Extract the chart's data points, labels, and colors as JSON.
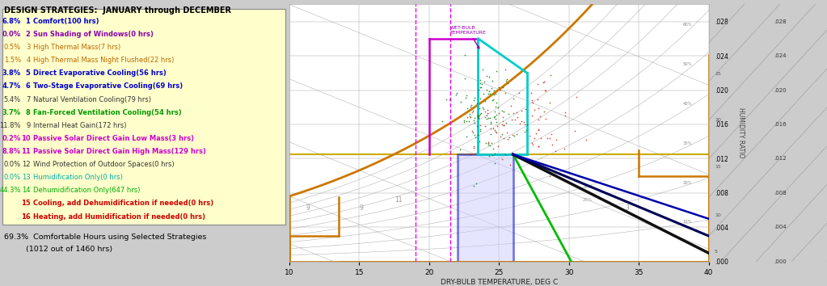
{
  "title": "DESIGN STRATEGIES:  JANUARY through DECEMBER",
  "strategies": [
    {
      "pct": "6.8%",
      "num": "1",
      "text": "Comfort(100 hrs)",
      "color": "#0000cc",
      "bold": true
    },
    {
      "pct": "0.0%",
      "num": "2",
      "text": "Sun Shading of Windows(0 hrs)",
      "color": "#8800aa",
      "bold": true
    },
    {
      "pct": "0.5%",
      "num": "3",
      "text": "High Thermal Mass(7 hrs)",
      "color": "#bb6600",
      "bold": false
    },
    {
      "pct": "1.5%",
      "num": "4",
      "text": "High Thermal Mass Night Flushed(22 hrs)",
      "color": "#bb6600",
      "bold": false
    },
    {
      "pct": "3.8%",
      "num": "5",
      "text": "Direct Evaporative Cooling(56 hrs)",
      "color": "#0000cc",
      "bold": true
    },
    {
      "pct": "4.7%",
      "num": "6",
      "text": "Two-Stage Evaporative Cooling(69 hrs)",
      "color": "#0000cc",
      "bold": true
    },
    {
      "pct": "5.4%",
      "num": "7",
      "text": "Natural Ventilation Cooling(79 hrs)",
      "color": "#333333",
      "bold": false
    },
    {
      "pct": "3.7%",
      "num": "8",
      "text": "Fan-Forced Ventilation Cooling(54 hrs)",
      "color": "#009900",
      "bold": true
    },
    {
      "pct": "11.8%",
      "num": "9",
      "text": "Internal Heat Gain(172 hrs)",
      "color": "#333333",
      "bold": false
    },
    {
      "pct": "0.2%",
      "num": "10",
      "text": "Passive Solar Direct Gain Low Mass(3 hrs)",
      "color": "#cc00cc",
      "bold": true
    },
    {
      "pct": "8.8%",
      "num": "11",
      "text": "Passive Solar Direct Gain High Mass(129 hrs)",
      "color": "#cc00cc",
      "bold": true
    },
    {
      "pct": "0.0%",
      "num": "12",
      "text": "Wind Protection of Outdoor Spaces(0 hrs)",
      "color": "#333333",
      "bold": false
    },
    {
      "pct": "0.0%",
      "num": "13",
      "text": "Humidification Only(0 hrs)",
      "color": "#00aaaa",
      "bold": false
    },
    {
      "pct": "44.3%",
      "num": "14",
      "text": "Dehumidification Only(647 hrs)",
      "color": "#00aa00",
      "bold": false
    },
    {
      "pct": "",
      "num": "15",
      "text": "Cooling, add Dehumidification if needed(0 hrs)",
      "color": "#cc0000",
      "bold": true
    },
    {
      "pct": "",
      "num": "16",
      "text": "Heating, add Humidification if needed(0 hrs)",
      "color": "#cc0000",
      "bold": true
    }
  ],
  "footer_line1": "69.3%  Comfortable Hours using Selected Strategies",
  "footer_line2": "         (1012 out of 1460 hrs)",
  "xlabel": "DRY-BULB TEMPERATURE, DEG C",
  "ylabel_right": "HUMIDITY RATIO",
  "xmin": 10,
  "xmax": 40,
  "ymin": 0.0,
  "ymax": 0.03,
  "left_panel_bg": "#ffffcc",
  "chart_bg": "#ffffff",
  "gray_bg": "#cccccc",
  "orange_color": "#cc7700",
  "gold_color": "#ccaa00",
  "cyan_color": "#00cccc",
  "magenta_color": "#cc00cc",
  "blue_zone_edge": "#0000cc",
  "blue_zone_fill": "#ccccff",
  "green_color": "#00bb00",
  "navy1_color": "#000000",
  "navy2_color": "#000033",
  "navy3_color": "#000077",
  "dashed_pink": "#ee00ee",
  "scatter_green": "#007700",
  "scatter_red": "#cc2200"
}
